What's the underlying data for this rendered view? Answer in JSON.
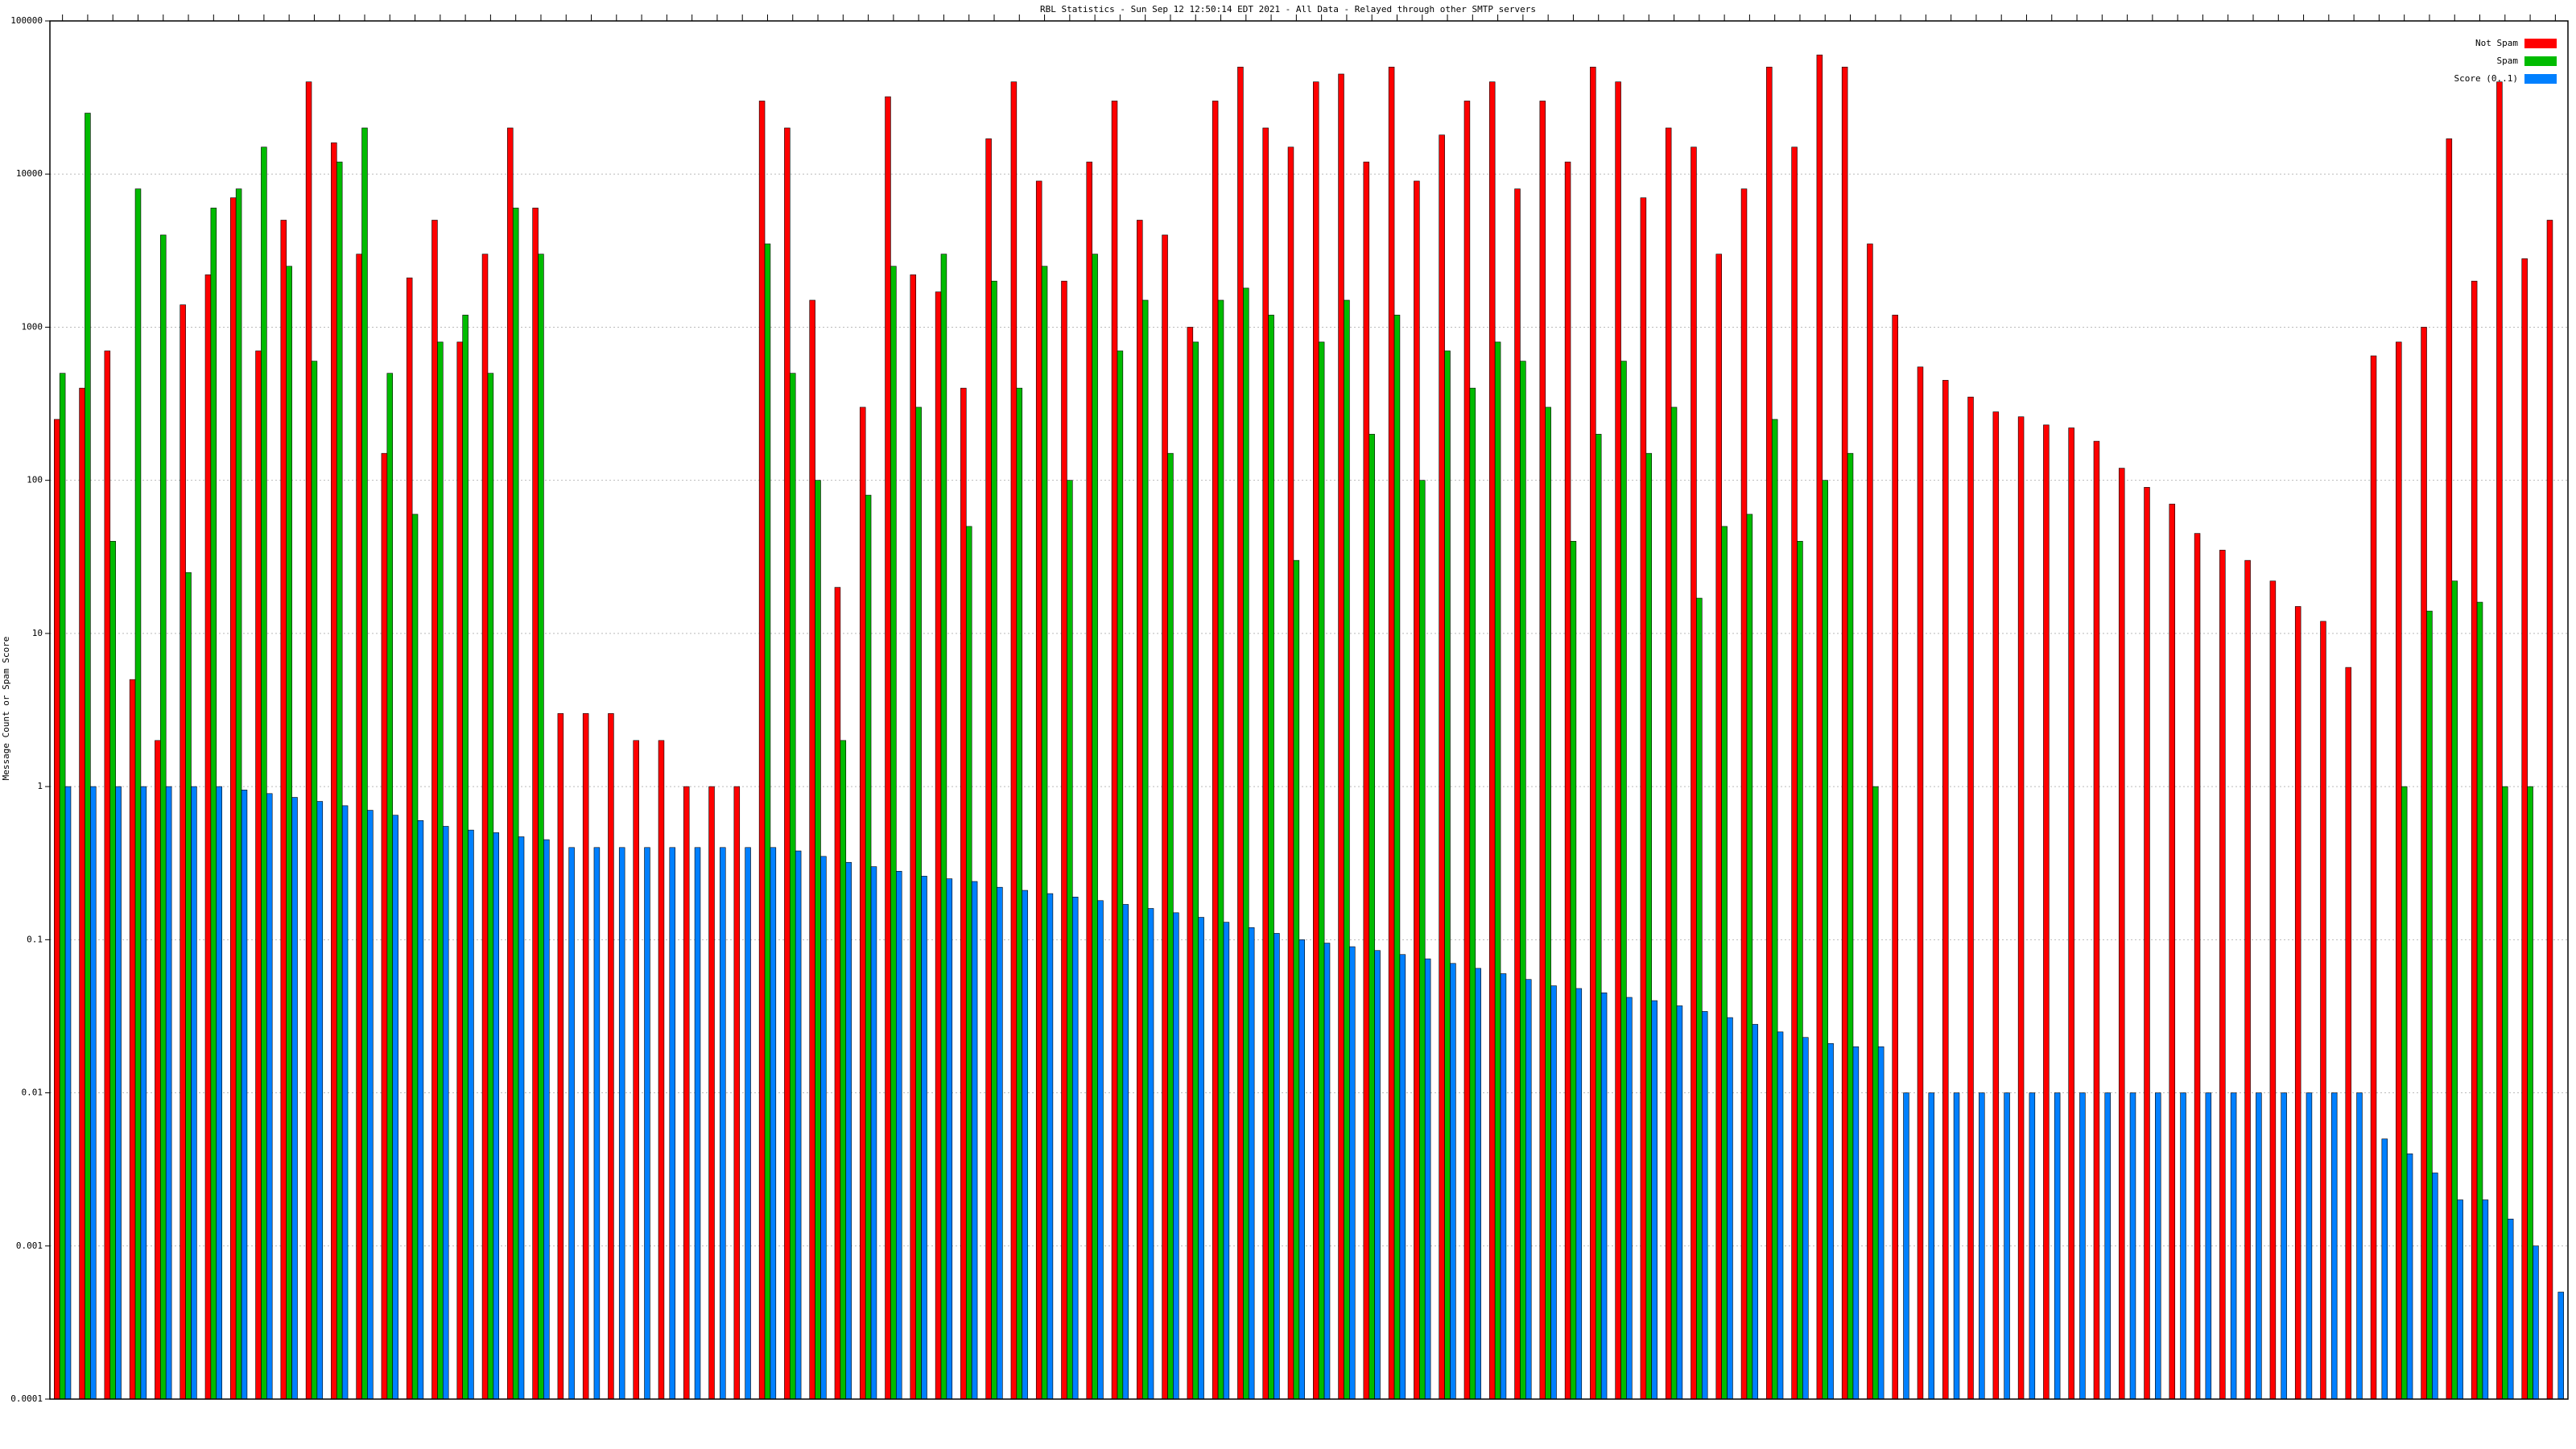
{
  "chart_data": {
    "type": "bar",
    "title": "RBL Statistics - Sun Sep 12 12:50:14 EDT 2021 - All Data - Relayed through other SMTP servers",
    "y_label": "Message Count or Spam Score",
    "log_scale": true,
    "grid": true,
    "legend_corner": "top-right",
    "ylim": [
      0.0001,
      100000
    ],
    "yticks": [
      {
        "value": 0.0001,
        "label": "0.0001"
      },
      {
        "value": 0.001,
        "label": "0.001"
      },
      {
        "value": 0.01,
        "label": "0.01"
      },
      {
        "value": 0.1,
        "label": "0.1"
      },
      1,
      10,
      100,
      1000,
      10000,
      100000
    ],
    "categories": [
      null,
      null,
      null,
      null,
      null,
      null,
      null,
      null,
      null,
      null,
      null,
      null,
      null,
      null,
      null,
      null,
      null,
      null,
      null,
      null,
      null,
      null,
      null,
      null,
      null,
      null,
      null,
      null,
      null,
      null,
      null,
      null,
      null,
      null,
      null,
      null,
      null,
      null,
      null,
      null,
      null,
      null,
      null,
      null,
      null,
      null,
      null,
      null,
      null,
      null,
      null,
      null,
      null,
      null,
      null,
      null,
      null,
      null,
      null,
      null,
      null,
      null,
      null,
      null,
      null,
      null,
      null,
      null,
      null,
      null,
      null,
      null,
      null,
      null,
      null,
      null,
      null,
      null,
      null,
      null,
      null,
      null,
      null,
      null,
      null,
      null,
      null,
      null,
      null,
      null,
      null,
      null,
      null,
      null,
      null,
      null,
      null,
      null,
      null,
      null
    ],
    "series": [
      {
        "name": "Not Spam",
        "color": "#ff0000",
        "values": [
          250,
          400,
          700,
          5,
          2,
          1400,
          2200,
          7000,
          700,
          5000,
          40000,
          16000,
          3000,
          150,
          2100,
          5000,
          800,
          3000,
          20000,
          6000,
          3,
          3,
          3,
          2,
          2,
          1,
          1,
          1,
          30000,
          20000,
          1500,
          20,
          300,
          32000,
          2200,
          1700,
          400,
          17000,
          40000,
          9000,
          2000,
          12000,
          30000,
          5000,
          4000,
          1000,
          30000,
          50000,
          20000,
          15000,
          40000,
          45000,
          12000,
          50000,
          9000,
          18000,
          30000,
          40000,
          8000,
          30000,
          12000,
          50000,
          40000,
          7000,
          20000,
          15000,
          3000,
          8000,
          50000,
          15000,
          60000,
          50000,
          3500,
          1200,
          550,
          450,
          350,
          280,
          260,
          230,
          220,
          180,
          120,
          90,
          70,
          45,
          35,
          30,
          22,
          15,
          12,
          6,
          650,
          800,
          1000,
          17000,
          2000,
          40000,
          2800,
          5000
        ]
      },
      {
        "name": "Spam",
        "color": "#00bb00",
        "values": [
          500,
          25000,
          40,
          8000,
          4000,
          25,
          6000,
          8000,
          15000,
          2500,
          600,
          12000,
          20000,
          500,
          60,
          800,
          1200,
          500,
          6000,
          3000,
          null,
          null,
          null,
          null,
          null,
          null,
          null,
          null,
          3500,
          500,
          100,
          2,
          80,
          2500,
          300,
          3000,
          50,
          2000,
          400,
          2500,
          100,
          3000,
          700,
          1500,
          150,
          800,
          1500,
          1800,
          1200,
          30,
          800,
          1500,
          200,
          1200,
          100,
          700,
          400,
          800,
          600,
          300,
          40,
          200,
          600,
          150,
          300,
          17,
          50,
          60,
          250,
          40,
          100,
          150,
          1,
          null,
          null,
          null,
          null,
          null,
          null,
          null,
          null,
          null,
          null,
          null,
          null,
          null,
          null,
          null,
          null,
          null,
          null,
          null,
          null,
          1,
          14,
          22,
          16,
          1,
          1,
          null
        ]
      },
      {
        "name": "Score (0..1)",
        "color": "#0080ff",
        "values": [
          1,
          1,
          1,
          1,
          1,
          1,
          1,
          0.95,
          0.9,
          0.85,
          0.8,
          0.75,
          0.7,
          0.65,
          0.6,
          0.55,
          0.52,
          0.5,
          0.47,
          0.45,
          0.4,
          0.4,
          0.4,
          0.4,
          0.4,
          0.4,
          0.4,
          0.4,
          0.4,
          0.38,
          0.35,
          0.32,
          0.3,
          0.28,
          0.26,
          0.25,
          0.24,
          0.22,
          0.21,
          0.2,
          0.19,
          0.18,
          0.17,
          0.16,
          0.15,
          0.14,
          0.13,
          0.12,
          0.11,
          0.1,
          0.095,
          0.09,
          0.085,
          0.08,
          0.075,
          0.07,
          0.065,
          0.06,
          0.055,
          0.05,
          0.048,
          0.045,
          0.042,
          0.04,
          0.037,
          0.034,
          0.031,
          0.028,
          0.025,
          0.023,
          0.021,
          0.02,
          0.02,
          0.01,
          0.01,
          0.01,
          0.01,
          0.01,
          0.01,
          0.01,
          0.01,
          0.01,
          0.01,
          0.01,
          0.01,
          0.01,
          0.01,
          0.01,
          0.01,
          0.01,
          0.01,
          0.01,
          0.005,
          0.004,
          0.003,
          0.002,
          0.002,
          0.0015,
          0.001,
          0.0005
        ]
      }
    ]
  }
}
